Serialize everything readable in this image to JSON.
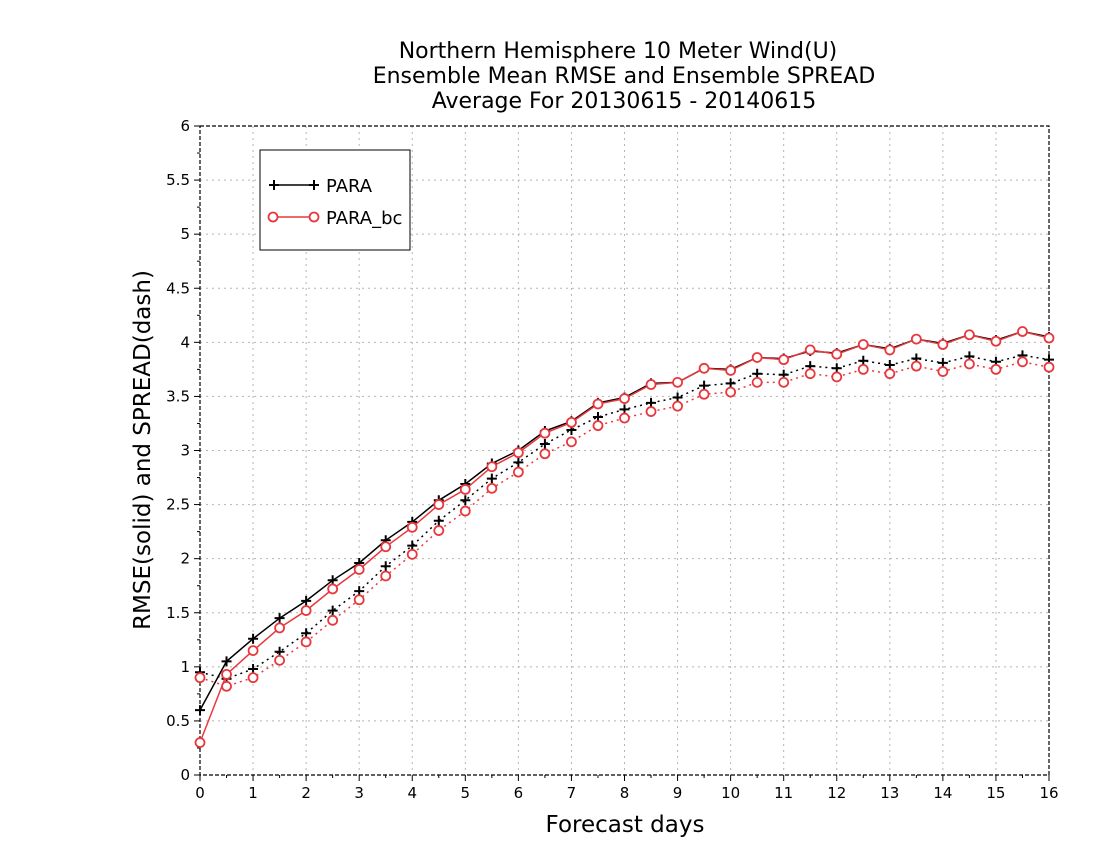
{
  "chart_data": {
    "type": "line",
    "title_lines": [
      "Northern Hemisphere 10 Meter Wind(U)",
      "Ensemble Mean RMSE and Ensemble SPREAD",
      "Average For 20130615 - 20140615"
    ],
    "xlabel": "Forecast days",
    "ylabel": "RMSE(solid) and SPREAD(dash)",
    "xlim": [
      0,
      16
    ],
    "ylim": [
      0,
      6
    ],
    "x_ticks": [
      "0",
      "1",
      "2",
      "3",
      "4",
      "5",
      "6",
      "7",
      "8",
      "9",
      "10",
      "11",
      "12",
      "13",
      "14",
      "15",
      "16"
    ],
    "y_ticks": [
      "0",
      "0.5",
      "1",
      "1.5",
      "2",
      "2.5",
      "3",
      "3.5",
      "4",
      "4.5",
      "5",
      "5.5",
      "6"
    ],
    "grid": true,
    "legend_position": "top-left",
    "x": [
      0,
      0.5,
      1,
      1.5,
      2,
      2.5,
      3,
      3.5,
      4,
      4.5,
      5,
      5.5,
      6,
      6.5,
      7,
      7.5,
      8,
      8.5,
      9,
      9.5,
      10,
      10.5,
      11,
      11.5,
      12,
      12.5,
      13,
      13.5,
      14,
      14.5,
      15,
      15.5,
      16
    ],
    "series": [
      {
        "name": "PARA",
        "color": "#000000",
        "marker": "plus",
        "rmse": [
          0.6,
          1.05,
          1.26,
          1.45,
          1.61,
          1.8,
          1.96,
          2.17,
          2.34,
          2.54,
          2.69,
          2.88,
          3.0,
          3.18,
          3.27,
          3.44,
          3.49,
          3.62,
          3.63,
          3.76,
          3.75,
          3.86,
          3.85,
          3.92,
          3.9,
          3.98,
          3.94,
          4.03,
          3.99,
          4.07,
          4.02,
          4.1,
          4.05
        ],
        "spread": [
          0.95,
          0.89,
          0.98,
          1.14,
          1.31,
          1.52,
          1.7,
          1.93,
          2.12,
          2.35,
          2.54,
          2.74,
          2.89,
          3.06,
          3.19,
          3.31,
          3.38,
          3.44,
          3.49,
          3.6,
          3.62,
          3.71,
          3.7,
          3.78,
          3.76,
          3.83,
          3.79,
          3.85,
          3.81,
          3.87,
          3.82,
          3.88,
          3.84
        ]
      },
      {
        "name": "PARA_bc",
        "color": "#e8383d",
        "marker": "circle",
        "rmse": [
          0.3,
          0.93,
          1.15,
          1.36,
          1.52,
          1.72,
          1.9,
          2.11,
          2.29,
          2.5,
          2.64,
          2.85,
          2.98,
          3.16,
          3.26,
          3.43,
          3.48,
          3.61,
          3.63,
          3.76,
          3.74,
          3.86,
          3.84,
          3.93,
          3.89,
          3.98,
          3.93,
          4.03,
          3.98,
          4.07,
          4.01,
          4.1,
          4.04
        ],
        "spread": [
          0.9,
          0.82,
          0.9,
          1.06,
          1.23,
          1.43,
          1.62,
          1.84,
          2.04,
          2.26,
          2.44,
          2.65,
          2.8,
          2.97,
          3.08,
          3.23,
          3.3,
          3.36,
          3.41,
          3.52,
          3.54,
          3.63,
          3.63,
          3.71,
          3.68,
          3.75,
          3.71,
          3.78,
          3.73,
          3.8,
          3.75,
          3.82,
          3.77
        ]
      }
    ]
  }
}
